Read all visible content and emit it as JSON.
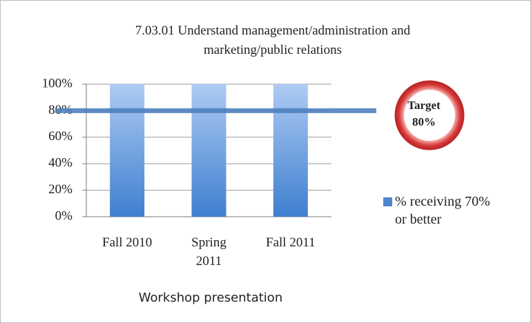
{
  "chart_data": {
    "type": "bar",
    "title": "7.03.01 Understand management/administration and marketing/public relations",
    "categories": [
      "Fall 2010",
      "Spring 2011",
      "Fall 2011"
    ],
    "series": [
      {
        "name": "% receiving 70% or better",
        "color": "#4f86cf",
        "values": [
          100,
          100,
          100
        ]
      }
    ],
    "xlabel": "Workshop presentation",
    "ylim": [
      0,
      100
    ],
    "yticks": [
      {
        "value": 0,
        "label": "0%"
      },
      {
        "value": 20,
        "label": "20%"
      },
      {
        "value": 40,
        "label": "40%"
      },
      {
        "value": 60,
        "label": "60%"
      },
      {
        "value": 80,
        "label": "80%"
      },
      {
        "value": 100,
        "label": "100%"
      }
    ],
    "grid": true,
    "target": {
      "value": 80,
      "label_lines": [
        "Target",
        "80%"
      ],
      "color": "#4f81bd"
    }
  }
}
